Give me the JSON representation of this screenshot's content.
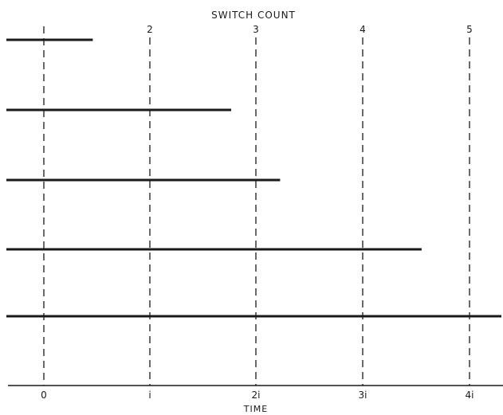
{
  "top_axis": {
    "title": "SWITCH COUNT",
    "labels": [
      "",
      "2",
      "3",
      "4",
      "5"
    ]
  },
  "bottom_axis": {
    "title": "TIME",
    "labels": [
      "0",
      "i",
      "2i",
      "3i",
      "4i"
    ]
  },
  "bars": [
    {
      "end_value": 0.46
    },
    {
      "end_value": 1.76
    },
    {
      "end_value": 2.22
    },
    {
      "end_value": 3.55
    },
    {
      "end_value": 4.3
    }
  ],
  "colors": {
    "ink": "#1a1a1a",
    "background": "#ffffff"
  }
}
